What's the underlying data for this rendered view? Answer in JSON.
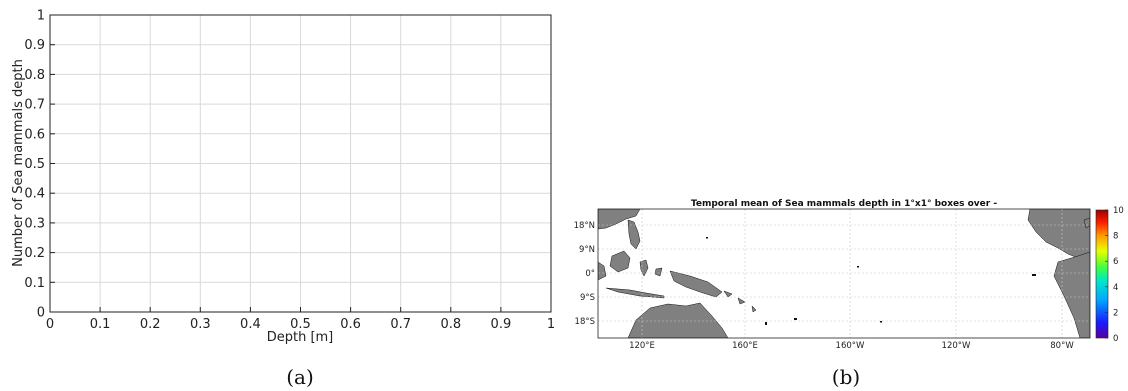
{
  "captions": {
    "left": "(a)",
    "right": "(b)"
  },
  "chart_data": [
    {
      "type": "line",
      "title": "",
      "xlabel": "Depth [m]",
      "ylabel": "Number of Sea mammals  depth",
      "xlim": [
        0,
        1
      ],
      "ylim": [
        0,
        1
      ],
      "xticks": [
        "0",
        "0.1",
        "0.2",
        "0.3",
        "0.4",
        "0.5",
        "0.6",
        "0.7",
        "0.8",
        "0.9",
        "1"
      ],
      "yticks": [
        "0",
        "0.1",
        "0.2",
        "0.3",
        "0.4",
        "0.5",
        "0.6",
        "0.7",
        "0.8",
        "0.9",
        "1"
      ],
      "grid": true,
      "series": []
    },
    {
      "type": "heatmap",
      "title": "Temporal mean of Sea mammals  depth in 1°x1° boxes over -",
      "xticks": [
        "120°E",
        "160°E",
        "160°W",
        "120°W",
        "80°W"
      ],
      "yticks": [
        "18°N",
        "9°N",
        "0°",
        "9°S",
        "18°S"
      ],
      "colorbar": {
        "min": 0,
        "max": 10,
        "ticks": [
          "0",
          "2",
          "4",
          "6",
          "8",
          "10"
        ],
        "colormap": "jet"
      },
      "grid": true,
      "land_color": "#808080",
      "values": []
    }
  ]
}
